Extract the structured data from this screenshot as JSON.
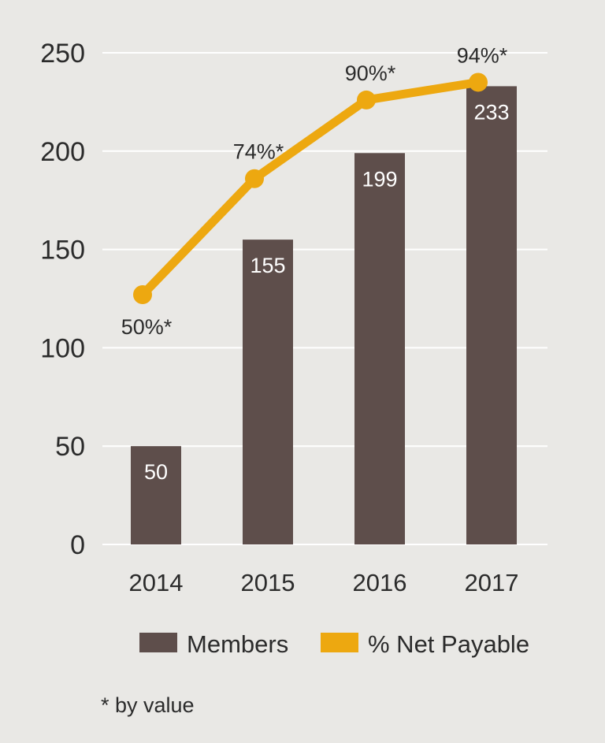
{
  "chart_data": {
    "type": "bar",
    "categories": [
      "2014",
      "2015",
      "2016",
      "2017"
    ],
    "series": [
      {
        "name": "Members",
        "kind": "bar",
        "color": "#5e4e4b",
        "values": [
          50,
          155,
          199,
          233
        ]
      },
      {
        "name": "% Net Payable",
        "kind": "line",
        "color": "#eda810",
        "values": [
          127,
          186,
          226,
          235
        ],
        "data_labels": [
          "50%*",
          "74%*",
          "90%*",
          "94%*"
        ]
      }
    ],
    "ylim": [
      0,
      250
    ],
    "yticks": [
      "0",
      "50",
      "100",
      "150",
      "200",
      "250"
    ],
    "grid": true,
    "legend": {
      "placement": "bottom",
      "entries": [
        "Members",
        "% Net Payable"
      ]
    },
    "title": "",
    "xlabel": "",
    "ylabel": ""
  },
  "footnote": "* by value",
  "colors": {
    "background": "#e9e8e5",
    "grid": "#ffffff",
    "bar_label": "#ffffff",
    "text": "#2b2b2b"
  }
}
